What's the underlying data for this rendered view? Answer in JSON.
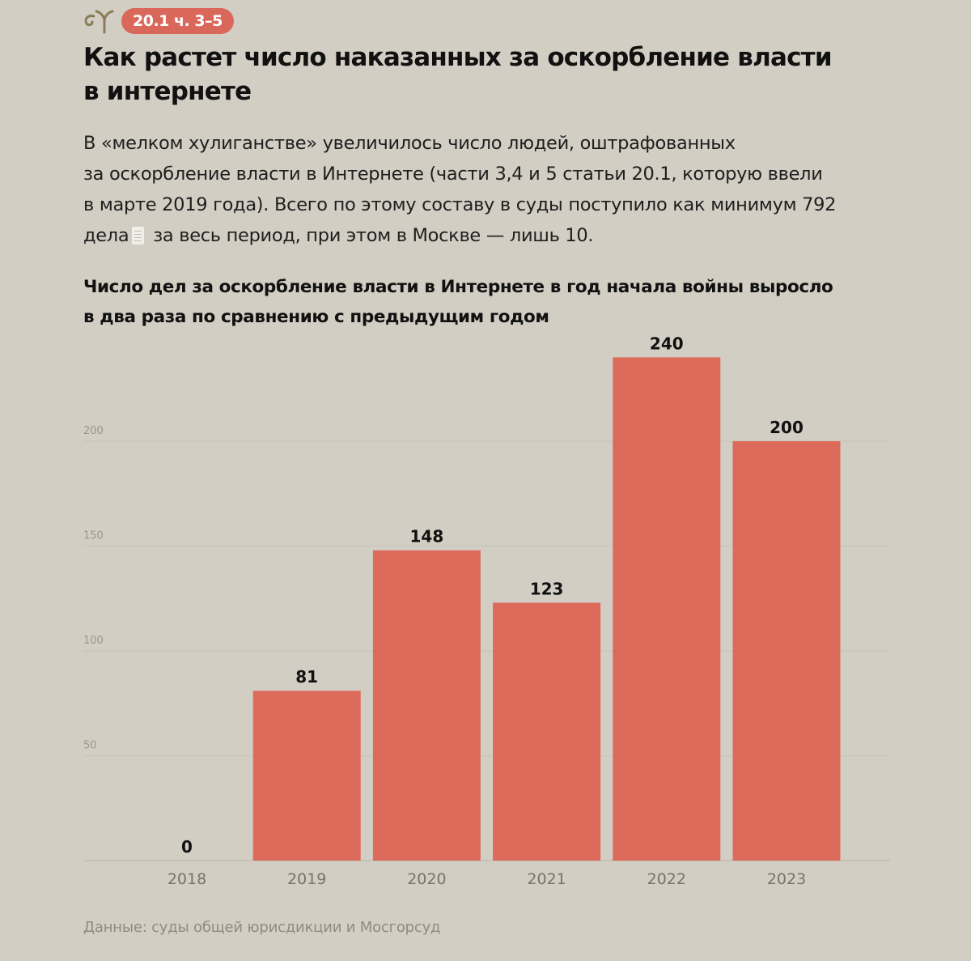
{
  "header": {
    "badge": "20.1 ч. 3–5",
    "title": "Как растет число наказанных за оскорбление власти\nв интернете"
  },
  "lead": {
    "text_before_icon": "В «мелком хулиганстве» увеличилось число людей, оштрафованных\nза оскорбление власти в Интернете (части 3,4 и 5 статьи 20.1, которую ввели\nв марте 2019 года). Всего по этому составу в суды поступило как минимум 792\nдела",
    "text_after_icon": " за весь период, при этом в Москве — лишь 10."
  },
  "icons": {
    "logo": "sprout-logo-icon",
    "inline_document": "document-icon"
  },
  "colors": {
    "background": "#d2cec3",
    "accent": "#dd6b5c",
    "badge": "#d9685a"
  },
  "chart_data": {
    "type": "bar",
    "title": "Число дел за оскорбление власти в Интернете в год начала войны выросло\nв два раза по сравнению с предыдущим годом",
    "categories": [
      "2018",
      "2019",
      "2020",
      "2021",
      "2022",
      "2023"
    ],
    "values": [
      0,
      81,
      148,
      123,
      240,
      200
    ],
    "data_labels": [
      "0",
      "81",
      "148",
      "123",
      "240",
      "200"
    ],
    "yticks": [
      50,
      100,
      150,
      200
    ],
    "ylim": [
      0,
      240
    ],
    "xlabel": "",
    "ylabel": "",
    "grid": true,
    "color": "#dd6b5c"
  },
  "source": "Данные: суды общей юрисдикции и Мосгорсуд"
}
